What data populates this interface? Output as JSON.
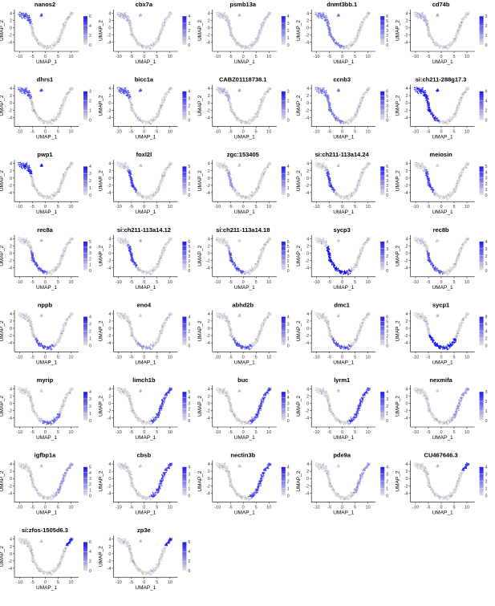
{
  "figure": {
    "panel_count": 37,
    "columns": 5,
    "colors": {
      "background": "#ffffff",
      "low": "#d3d3d3",
      "high": "#0000ff",
      "axis": "#000000"
    }
  },
  "chart_data": {
    "type": "scatter",
    "subtype": "umap-feature-plot-grid",
    "xlabel": "UMAP_1",
    "ylabel": "UMAP_2",
    "xlim": [
      -12,
      13
    ],
    "ylim": [
      -6.5,
      5
    ],
    "x_ticks": [
      -10,
      -5,
      0,
      5,
      10
    ],
    "y_ticks": [
      -4,
      -2,
      0,
      2,
      4
    ],
    "grid": false,
    "legend": "colorbar to the right of each panel",
    "panels": [
      {
        "gene": "nanos2",
        "max": 6,
        "ticks": [
          0,
          2,
          4,
          6
        ],
        "region": "spg"
      },
      {
        "gene": "cbx7a",
        "max": 4,
        "ticks": [
          0,
          1,
          2,
          3,
          4
        ],
        "region": "spg-low"
      },
      {
        "gene": "psmb13a",
        "max": 4,
        "ticks": [
          0,
          1,
          2,
          3,
          4
        ],
        "region": "broad"
      },
      {
        "gene": "dnmt3bb.1",
        "max": 6,
        "ticks": [
          0,
          1,
          2,
          3,
          4,
          5,
          6
        ],
        "region": "early"
      },
      {
        "gene": "cd74b",
        "max": 3,
        "ticks": [
          0,
          1,
          2,
          3
        ],
        "region": "spg-low"
      },
      {
        "gene": "dhrs1",
        "max": 3,
        "ticks": [
          0,
          1,
          2,
          3
        ],
        "region": "spg"
      },
      {
        "gene": "bicc1a",
        "max": 4,
        "ticks": [
          0,
          1,
          2,
          3,
          4
        ],
        "region": "spg"
      },
      {
        "gene": "CABZ01118738.1",
        "max": 3,
        "ticks": [
          0,
          1,
          2,
          3
        ],
        "region": "spg-low"
      },
      {
        "gene": "ccnb3",
        "max": 6,
        "ticks": [
          0,
          1,
          2,
          3,
          4,
          5,
          6
        ],
        "region": "early"
      },
      {
        "gene": "si:ch211-288g17.3",
        "max": 6,
        "ticks": [
          0,
          2,
          4,
          6
        ],
        "region": "early-strong"
      },
      {
        "gene": "pwp1",
        "max": 4,
        "ticks": [
          0,
          1,
          2,
          3,
          4
        ],
        "region": "spg-strong"
      },
      {
        "gene": "foxl2l",
        "max": 5,
        "ticks": [
          0,
          1,
          2,
          3,
          4,
          5
        ],
        "region": "left-arm"
      },
      {
        "gene": "zgc:153405",
        "max": 4,
        "ticks": [
          0,
          1,
          2,
          3,
          4
        ],
        "region": "left-arm-low"
      },
      {
        "gene": "si:ch211-113a14.24",
        "max": 6,
        "ticks": [
          0,
          1,
          2,
          3,
          4,
          5,
          6
        ],
        "region": "left-arm"
      },
      {
        "gene": "meiosin",
        "max": 5,
        "ticks": [
          0,
          1,
          2,
          3,
          4,
          5
        ],
        "region": "left-arm"
      },
      {
        "gene": "rec8a",
        "max": 5,
        "ticks": [
          0,
          1,
          2,
          3,
          4,
          5
        ],
        "region": "left-bottom"
      },
      {
        "gene": "si:ch211-113a14.12",
        "max": 6,
        "ticks": [
          0,
          1,
          2,
          3,
          4,
          5,
          6
        ],
        "region": "left-arm"
      },
      {
        "gene": "si:ch211-113a14.18",
        "max": 6,
        "ticks": [
          0,
          1,
          2,
          3,
          4,
          5,
          6
        ],
        "region": "left-bottom"
      },
      {
        "gene": "sycp3",
        "max": 4,
        "ticks": [
          0,
          1,
          2,
          3,
          4
        ],
        "region": "left-bottom-strong"
      },
      {
        "gene": "rec8b",
        "max": 4,
        "ticks": [
          0,
          1,
          2,
          3,
          4
        ],
        "region": "left-bottom"
      },
      {
        "gene": "nppb",
        "max": 4,
        "ticks": [
          0,
          1,
          2,
          3,
          4
        ],
        "region": "bottom"
      },
      {
        "gene": "eno4",
        "max": 4,
        "ticks": [
          0,
          1,
          2,
          3,
          4
        ],
        "region": "bottom-low"
      },
      {
        "gene": "abhd2b",
        "max": 4,
        "ticks": [
          0,
          1,
          2,
          3,
          4
        ],
        "region": "bottom"
      },
      {
        "gene": "dmc1",
        "max": 6,
        "ticks": [
          0,
          1,
          2,
          3,
          4,
          5,
          6
        ],
        "region": "bottom"
      },
      {
        "gene": "sycp1",
        "max": 8,
        "ticks": [
          0,
          2,
          4,
          6,
          8
        ],
        "region": "bottom-strong"
      },
      {
        "gene": "myrip",
        "max": 4,
        "ticks": [
          0,
          1,
          2,
          3,
          4
        ],
        "region": "bottom-right"
      },
      {
        "gene": "limch1b",
        "max": 5,
        "ticks": [
          0,
          1,
          2,
          3,
          4,
          5
        ],
        "region": "right-arm"
      },
      {
        "gene": "buc",
        "max": 5,
        "ticks": [
          0,
          1,
          2,
          3,
          4,
          5
        ],
        "region": "right-arm"
      },
      {
        "gene": "lyrm1",
        "max": 4,
        "ticks": [
          0,
          1,
          2,
          3,
          4
        ],
        "region": "right-arm"
      },
      {
        "gene": "nexmifa",
        "max": 3,
        "ticks": [
          0,
          1,
          2,
          3
        ],
        "region": "right-arm-low"
      },
      {
        "gene": "igfbp1a",
        "max": 5,
        "ticks": [
          0,
          1,
          2,
          3,
          4,
          5
        ],
        "region": "right-arm-low"
      },
      {
        "gene": "cbsb",
        "max": 4,
        "ticks": [
          0,
          1,
          2,
          3,
          4
        ],
        "region": "right-arm"
      },
      {
        "gene": "nectin3b",
        "max": 4,
        "ticks": [
          0,
          1,
          2,
          3,
          4
        ],
        "region": "right-arm"
      },
      {
        "gene": "pde9a",
        "max": 4,
        "ticks": [
          0,
          1,
          2,
          3,
          4
        ],
        "region": "right-arm-low"
      },
      {
        "gene": "CU467646.3",
        "max": 4,
        "ticks": [
          0,
          1,
          2,
          3,
          4
        ],
        "region": "right-tip"
      },
      {
        "gene": "si:zfos-1505d6.3",
        "max": 6,
        "ticks": [
          0,
          2,
          4,
          6
        ],
        "region": "right-tip"
      },
      {
        "gene": "zp3e",
        "max": 6,
        "ticks": [
          0,
          2,
          4,
          6
        ],
        "region": "right-tip"
      }
    ]
  }
}
